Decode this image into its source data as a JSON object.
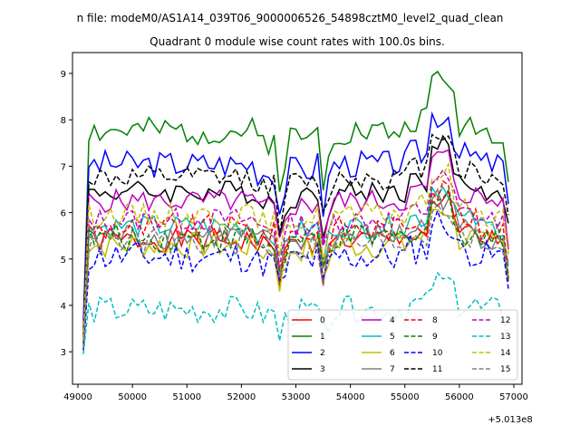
{
  "chart_data": {
    "type": "line",
    "suptitle": "n file: modeM0/AS1A14_039T06_9000006526_54898cztM0_level2_quad_clean",
    "title": "Quadrant 0 module wise count rates with 100.0s bins.",
    "xlabel": "",
    "ylabel": "",
    "x_offset_label": "+5.013e8",
    "xlim": [
      48900,
      57150
    ],
    "ylim": [
      2.3,
      9.45
    ],
    "x_ticks": [
      49000,
      50000,
      51000,
      52000,
      53000,
      54000,
      55000,
      56000,
      57000
    ],
    "y_ticks": [
      3,
      4,
      5,
      6,
      7,
      8,
      9
    ],
    "x_start": 49100,
    "x_step": 100,
    "grid": false,
    "legend_position": "lower-right",
    "series": [
      {
        "name": "0",
        "color": "#ff0000",
        "dash": "solid",
        "base": 5.4,
        "amp": 0.25,
        "seed": 1
      },
      {
        "name": "1",
        "color": "#008000",
        "dash": "solid",
        "base": 7.75,
        "amp": 0.3,
        "seed": 2
      },
      {
        "name": "2",
        "color": "#0000ff",
        "dash": "solid",
        "base": 7.05,
        "amp": 0.3,
        "seed": 3
      },
      {
        "name": "3",
        "color": "#000000",
        "dash": "solid",
        "base": 6.45,
        "amp": 0.25,
        "seed": 4
      },
      {
        "name": "4",
        "color": "#bf00bf",
        "dash": "solid",
        "base": 6.25,
        "amp": 0.25,
        "seed": 5
      },
      {
        "name": "5",
        "color": "#00bfbf",
        "dash": "solid",
        "base": 5.7,
        "amp": 0.25,
        "seed": 6
      },
      {
        "name": "6",
        "color": "#bfbf00",
        "dash": "solid",
        "base": 5.3,
        "amp": 0.3,
        "seed": 7
      },
      {
        "name": "7",
        "color": "#808080",
        "dash": "solid",
        "base": 5.5,
        "amp": 0.3,
        "seed": 8
      },
      {
        "name": "8",
        "color": "#ff0000",
        "dash": "dashed",
        "base": 5.65,
        "amp": 0.3,
        "seed": 9
      },
      {
        "name": "9",
        "color": "#008000",
        "dash": "dashed",
        "base": 5.45,
        "amp": 0.3,
        "seed": 10
      },
      {
        "name": "10",
        "color": "#0000ff",
        "dash": "dashed",
        "base": 5.05,
        "amp": 0.35,
        "seed": 11
      },
      {
        "name": "11",
        "color": "#000000",
        "dash": "dashed",
        "base": 6.75,
        "amp": 0.25,
        "seed": 12
      },
      {
        "name": "12",
        "color": "#bf00bf",
        "dash": "dashed",
        "base": 5.85,
        "amp": 0.25,
        "seed": 13
      },
      {
        "name": "13",
        "color": "#00bfbf",
        "dash": "dashed",
        "base": 3.9,
        "amp": 0.3,
        "seed": 14
      },
      {
        "name": "14",
        "color": "#bfbf00",
        "dash": "dashed",
        "base": 5.95,
        "amp": 0.25,
        "seed": 15
      },
      {
        "name": "15",
        "color": "#808080",
        "dash": "dashed",
        "base": 5.35,
        "amp": 0.3,
        "seed": 16
      }
    ]
  }
}
